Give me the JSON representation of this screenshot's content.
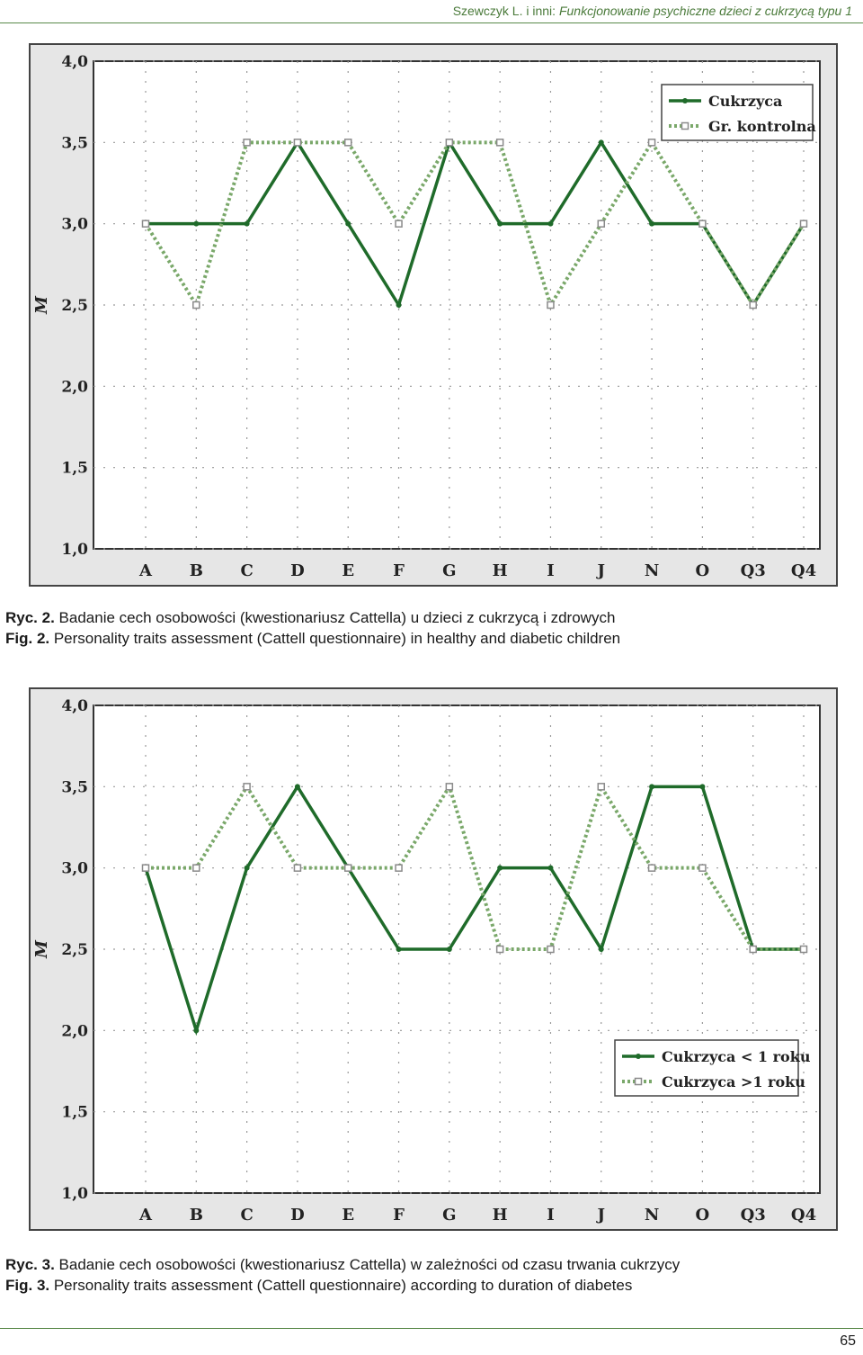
{
  "header": {
    "authors": "Szewczyk L. i inni: ",
    "title": "Funkcjonowanie psychiczne dzieci z cukrzycą typu 1"
  },
  "figures": [
    {
      "caption_pl_label": "Ryc. 2.",
      "caption_pl_text": " Badanie cech osobowości (kwestionariusz Cattella) u dzieci z cukrzycą i zdrowych",
      "caption_en_label": "Fig. 2.",
      "caption_en_text": " Personality traits assessment (Cattell questionnaire) in healthy and diabetic children"
    },
    {
      "caption_pl_label": "Ryc. 3.",
      "caption_pl_text": " Badanie cech osobowości (kwestionariusz Cattella) w zależności od czasu trwania cukrzycy",
      "caption_en_label": "Fig. 3.",
      "caption_en_text": " Personality traits assessment (Cattell questionnaire) according to duration of diabetes"
    }
  ],
  "chart_data": [
    {
      "type": "line",
      "title": "",
      "xlabel": "",
      "ylabel": "M",
      "ylim": [
        1.0,
        4.0
      ],
      "yticks": [
        "1,0",
        "1,5",
        "2,0",
        "2,5",
        "3,0",
        "3,5",
        "4,0"
      ],
      "grid": true,
      "legend_position": "top-right",
      "categories": [
        "A",
        "B",
        "C",
        "D",
        "E",
        "F",
        "G",
        "H",
        "I",
        "J",
        "N",
        "O",
        "Q3",
        "Q4"
      ],
      "series": [
        {
          "name": "Cukrzyca",
          "style": "solid",
          "color": "#1f6b2a",
          "values": [
            3.0,
            3.0,
            3.0,
            3.5,
            3.0,
            2.5,
            3.5,
            3.0,
            3.0,
            3.5,
            3.0,
            3.0,
            2.5,
            3.0
          ]
        },
        {
          "name": "Gr. kontrolna",
          "style": "dotted",
          "color": "#7aa86a",
          "values": [
            3.0,
            2.5,
            3.5,
            3.5,
            3.5,
            3.0,
            3.5,
            3.5,
            2.5,
            3.0,
            3.5,
            3.0,
            2.5,
            3.0
          ]
        }
      ]
    },
    {
      "type": "line",
      "title": "",
      "xlabel": "",
      "ylabel": "M",
      "ylim": [
        1.0,
        4.0
      ],
      "yticks": [
        "1,0",
        "1,5",
        "2,0",
        "2,5",
        "3,0",
        "3,5",
        "4,0"
      ],
      "grid": true,
      "legend_position": "bottom-right",
      "categories": [
        "A",
        "B",
        "C",
        "D",
        "E",
        "F",
        "G",
        "H",
        "I",
        "J",
        "N",
        "O",
        "Q3",
        "Q4"
      ],
      "series": [
        {
          "name": "Cukrzyca < 1 roku",
          "style": "solid",
          "color": "#1f6b2a",
          "values": [
            3.0,
            2.0,
            3.0,
            3.5,
            3.0,
            2.5,
            2.5,
            3.0,
            3.0,
            2.5,
            3.5,
            3.5,
            2.5,
            2.5
          ]
        },
        {
          "name": "Cukrzyca >1 roku",
          "style": "dotted",
          "color": "#7aa86a",
          "values": [
            3.0,
            3.0,
            3.5,
            3.0,
            3.0,
            3.0,
            3.5,
            2.5,
            2.5,
            3.5,
            3.0,
            3.0,
            2.5,
            2.5
          ]
        }
      ]
    }
  ],
  "page_number": "65"
}
